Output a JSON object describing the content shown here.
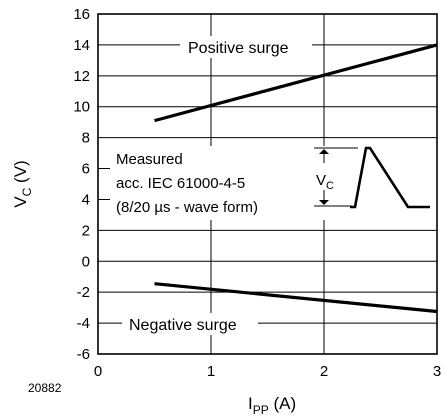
{
  "figure_number": "20882",
  "chart_data": {
    "type": "line",
    "xlabel": {
      "main": "I",
      "sub": "PP",
      "unit": " (A)"
    },
    "ylabel": {
      "main": "V",
      "sub": "C",
      "unit": " (V)"
    },
    "xlim": [
      0,
      3
    ],
    "ylim": [
      -6,
      16
    ],
    "xticks": [
      "0",
      "1",
      "2",
      "3"
    ],
    "yticks": [
      "-6",
      "-4",
      "-2",
      "0",
      "2",
      "4",
      "6",
      "8",
      "10",
      "12",
      "14",
      "16"
    ],
    "grid": true,
    "series": [
      {
        "name": "Positive surge",
        "x": [
          0.5,
          3.0
        ],
        "y": [
          9.1,
          14.0
        ]
      },
      {
        "name": "Negative surge",
        "x": [
          0.5,
          3.0
        ],
        "y": [
          -1.45,
          -3.25
        ]
      }
    ],
    "annotation": {
      "lines": [
        "Measured",
        "acc. IEC 61000-4-5",
        "(8/20 µs - wave form)"
      ],
      "inset_label": {
        "main": "V",
        "sub": "C"
      }
    }
  }
}
